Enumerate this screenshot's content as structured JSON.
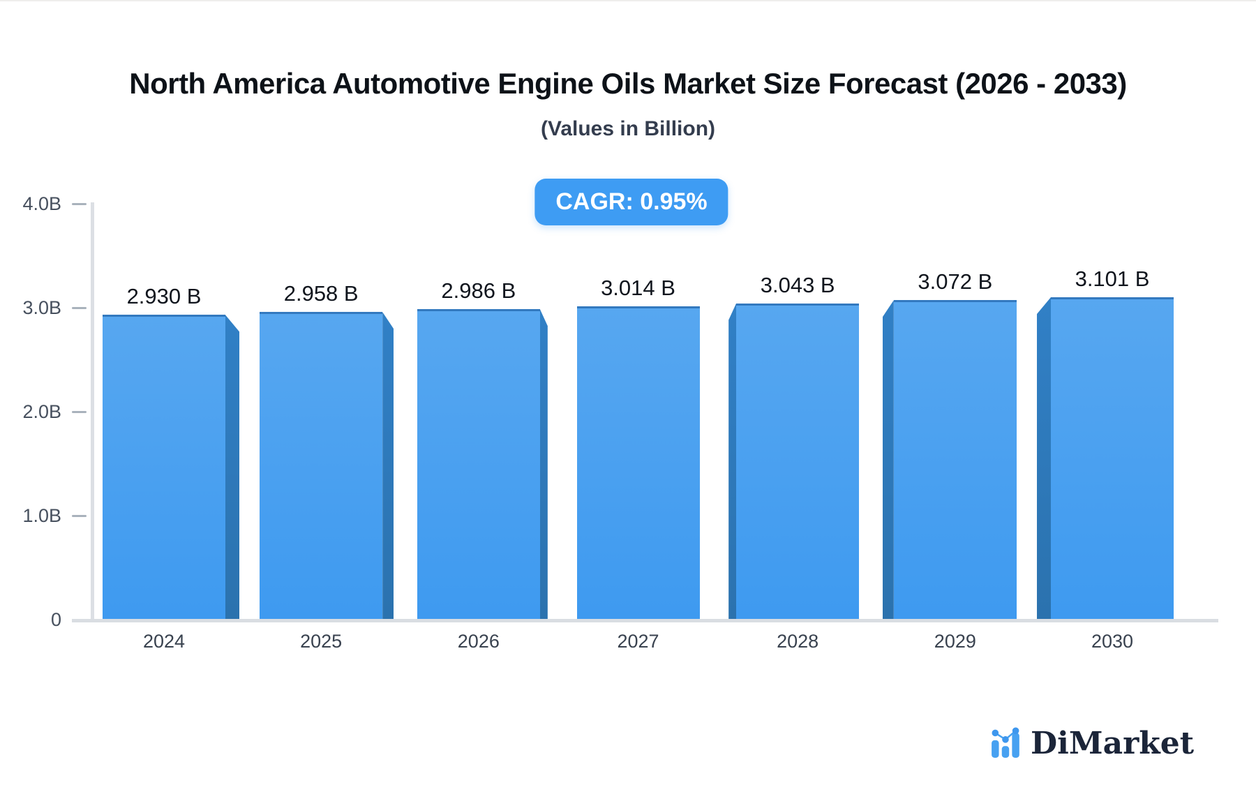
{
  "header": {
    "title": "North America Automotive Engine Oils Market Size Forecast (2026 - 2033)",
    "subtitle": "(Values in Billion)"
  },
  "badge": {
    "label": "CAGR: 0.95%"
  },
  "chart_data": {
    "type": "bar",
    "title": "North America Automotive Engine Oils Market Size Forecast (2026 - 2033)",
    "subtitle": "(Values in Billion)",
    "categories": [
      "2024",
      "2025",
      "2026",
      "2027",
      "2028",
      "2029",
      "2030"
    ],
    "values": [
      2.93,
      2.958,
      2.986,
      3.014,
      3.043,
      3.072,
      3.101
    ],
    "bar_labels": [
      "2.930 B",
      "2.958 B",
      "2.986 B",
      "3.014 B",
      "3.043 B",
      "3.072 B",
      "3.101 B"
    ],
    "unit": "Billion",
    "annotation": "CAGR: 0.95%",
    "ylim": [
      0,
      4
    ],
    "yticks": [
      {
        "label": "4.0B",
        "value": 4.0
      },
      {
        "label": "3.0B",
        "value": 3.0
      },
      {
        "label": "2.0B",
        "value": 2.0
      },
      {
        "label": "1.0B",
        "value": 1.0
      },
      {
        "label": "0",
        "value": 0.0
      }
    ],
    "grid": false,
    "legend": null,
    "colors": {
      "bar_top": "#57A7F0",
      "bar_bottom": "#3E9AF0",
      "bar_side": "#2F7BBD",
      "bar_border": "#3379BF",
      "axis": "#DCDFE4",
      "tick_dash": "#A9B2BC",
      "badge_bg": "#3E9CF3"
    }
  },
  "logo": {
    "text": "DiMarket",
    "icon": "dimarket-bars-icon"
  }
}
